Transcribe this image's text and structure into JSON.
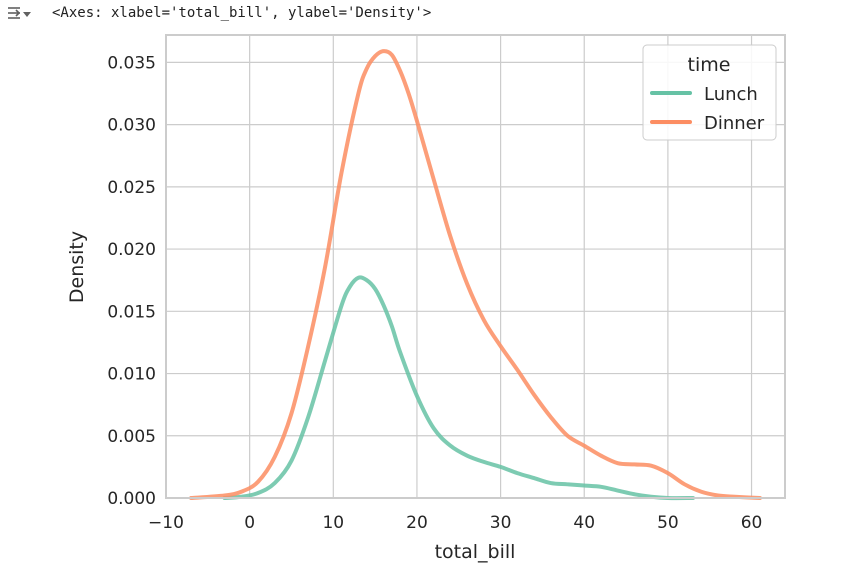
{
  "output": {
    "icon": "output-toggle-icon",
    "repr": "<Axes: xlabel='total_bill', ylabel='Density'>"
  },
  "chart_data": {
    "type": "line",
    "title": "",
    "xlabel": "total_bill",
    "ylabel": "Density",
    "xlim": [
      -10,
      64
    ],
    "ylim": [
      0,
      0.0372
    ],
    "xticks": [
      -10,
      0,
      10,
      20,
      30,
      40,
      50,
      60
    ],
    "xtick_labels": [
      "−10",
      "0",
      "10",
      "20",
      "30",
      "40",
      "50",
      "60"
    ],
    "yticks": [
      0,
      0.005,
      0.01,
      0.015,
      0.02,
      0.025,
      0.03,
      0.035
    ],
    "ytick_labels": [
      "0.000",
      "0.005",
      "0.010",
      "0.015",
      "0.020",
      "0.025",
      "0.030",
      "0.035"
    ],
    "grid": true,
    "legend": {
      "title": "time",
      "placement": "top-right"
    },
    "colors": {
      "Lunch": "#66c2a5",
      "Dinner": "#fc8d62",
      "grid": "#cccccc",
      "spine": "#cccccc"
    },
    "series": [
      {
        "name": "Lunch",
        "x": [
          -3,
          -1,
          1,
          3,
          5,
          7,
          9,
          11,
          12,
          13,
          14,
          15,
          16,
          17,
          18,
          20,
          22,
          24,
          26,
          28,
          30,
          32,
          34,
          36,
          38,
          40,
          42,
          44,
          46,
          48,
          50,
          53
        ],
        "y": [
          0.0,
          0.0001,
          0.0004,
          0.0012,
          0.003,
          0.0065,
          0.011,
          0.0155,
          0.017,
          0.0177,
          0.0175,
          0.0168,
          0.0155,
          0.0138,
          0.0117,
          0.0082,
          0.0056,
          0.0042,
          0.0034,
          0.0029,
          0.0025,
          0.002,
          0.0016,
          0.0012,
          0.0011,
          0.001,
          0.0009,
          0.0006,
          0.0003,
          0.0001,
          0.0,
          0.0
        ]
      },
      {
        "name": "Dinner",
        "x": [
          -7,
          -3,
          -1,
          1,
          3,
          5,
          7,
          9,
          11,
          13,
          14,
          15,
          16,
          17,
          18,
          19,
          20,
          22,
          24,
          26,
          28,
          30,
          32,
          34,
          36,
          38,
          40,
          42,
          44,
          46,
          48,
          50,
          52,
          54,
          56,
          58,
          61
        ],
        "y": [
          0.0,
          0.0002,
          0.0005,
          0.0013,
          0.0033,
          0.0068,
          0.0122,
          0.0185,
          0.0262,
          0.0325,
          0.0345,
          0.0355,
          0.0359,
          0.0356,
          0.0343,
          0.0325,
          0.0303,
          0.0256,
          0.021,
          0.0172,
          0.0143,
          0.0122,
          0.0103,
          0.0083,
          0.0065,
          0.005,
          0.0042,
          0.0034,
          0.0028,
          0.0027,
          0.0026,
          0.002,
          0.0011,
          0.0005,
          0.0002,
          0.0001,
          0.0
        ]
      }
    ]
  }
}
